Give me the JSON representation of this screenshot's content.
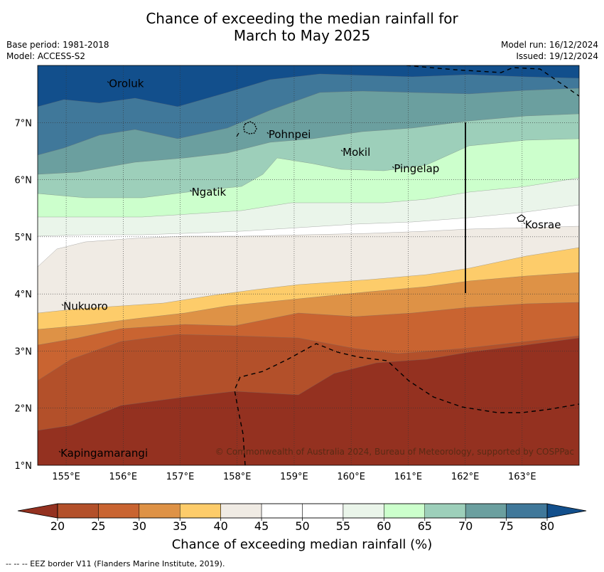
{
  "title_line1": "Chance of exceeding the median rainfall for",
  "title_line2": "March to May 2025",
  "meta": {
    "base_period": "Base period: 1981-2018",
    "model": "Model: ACCESS-S2",
    "model_run": "Model run: 16/12/2024",
    "issued": "Issued: 19/12/2024"
  },
  "map": {
    "lon_ticks": [
      "155°E",
      "156°E",
      "157°E",
      "158°E",
      "159°E",
      "160°E",
      "161°E",
      "162°E",
      "163°E"
    ],
    "lat_ticks": [
      "7°N",
      "6°N",
      "5°N",
      "4°N",
      "3°N",
      "2°N",
      "1°N"
    ],
    "lon_range": [
      154.5,
      164.0
    ],
    "lat_range": [
      1.0,
      8.0
    ],
    "places": [
      {
        "name": "Oroluk",
        "lon": 155.75,
        "lat": 7.62
      },
      {
        "name": "Pohnpei",
        "lon": 158.55,
        "lat": 6.73
      },
      {
        "name": "Mokil",
        "lon": 159.85,
        "lat": 6.42
      },
      {
        "name": "Pingelap",
        "lon": 160.75,
        "lat": 6.13
      },
      {
        "name": "Ngatik",
        "lon": 157.2,
        "lat": 5.72
      },
      {
        "name": "Kosrae",
        "lon": 163.05,
        "lat": 5.15
      },
      {
        "name": "Nukuoro",
        "lon": 154.95,
        "lat": 3.72
      },
      {
        "name": "Kapingamarangi",
        "lon": 154.9,
        "lat": 1.15
      }
    ],
    "credit": "© Commonwealth of Australia 2024, Bureau of Meteorology, supported by COSPPac"
  },
  "colorbar": {
    "ticks": [
      "20",
      "25",
      "30",
      "35",
      "40",
      "45",
      "50",
      "55",
      "60",
      "65",
      "70",
      "75",
      "80"
    ],
    "colors": [
      "#b3502a",
      "#c96431",
      "#de9246",
      "#fdcc6a",
      "#f0ebe4",
      "#ffffff",
      "#ffffff",
      "#eaf5ea",
      "#ccffcc",
      "#9dcfba",
      "#6b9f9f",
      "#40789a"
    ],
    "under_color": "#943120",
    "over_color": "#124f8c",
    "label": "Chance of exceeding median rainfall (%)"
  },
  "footnote": "--  --  -- EEZ border V11 (Flanders Marine Institute, 2019)."
}
